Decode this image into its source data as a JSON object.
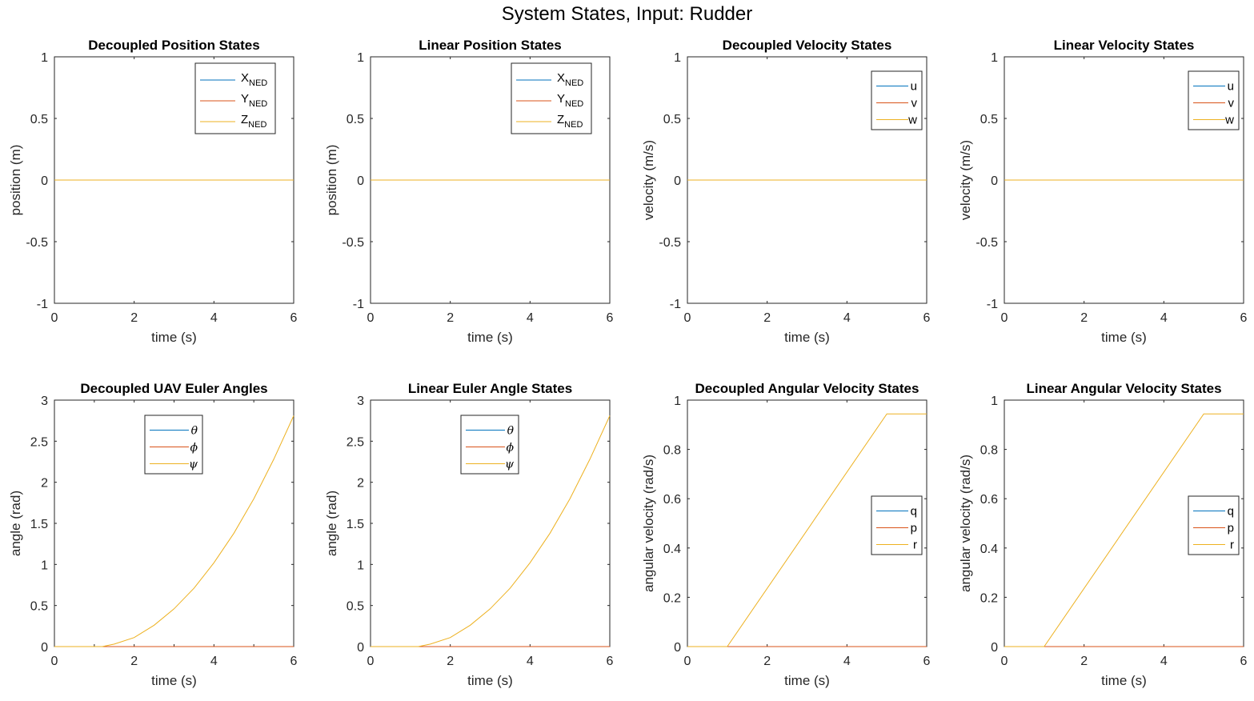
{
  "figure": {
    "title": "System States, Input: Rudder"
  },
  "colors": {
    "series1": "#0072BD",
    "series2": "#D95319",
    "series3": "#EDB120",
    "axis": "#262626"
  },
  "chart_data": [
    {
      "type": "line",
      "title": "Decoupled Position States",
      "xlabel": "time (s)",
      "ylabel": "position (m)",
      "xlim": [
        0,
        6
      ],
      "ylim": [
        -1,
        1
      ],
      "xticks": [
        0,
        2,
        4,
        6
      ],
      "yticks": [
        -1,
        -0.5,
        0,
        0.5,
        1
      ],
      "legend_position": "top-right",
      "series": [
        {
          "name": "X",
          "subscript": "NED",
          "x": [
            0,
            6
          ],
          "y": [
            0,
            0
          ]
        },
        {
          "name": "Y",
          "subscript": "NED",
          "x": [
            0,
            6
          ],
          "y": [
            0,
            0
          ]
        },
        {
          "name": "Z",
          "subscript": "NED",
          "x": [
            0,
            6
          ],
          "y": [
            0,
            0
          ]
        }
      ]
    },
    {
      "type": "line",
      "title": "Linear Position States",
      "xlabel": "time (s)",
      "ylabel": "position (m)",
      "xlim": [
        0,
        6
      ],
      "ylim": [
        -1,
        1
      ],
      "xticks": [
        0,
        2,
        4,
        6
      ],
      "yticks": [
        -1,
        -0.5,
        0,
        0.5,
        1
      ],
      "legend_position": "top-right",
      "series": [
        {
          "name": "X",
          "subscript": "NED",
          "x": [
            0,
            6
          ],
          "y": [
            0,
            0
          ]
        },
        {
          "name": "Y",
          "subscript": "NED",
          "x": [
            0,
            6
          ],
          "y": [
            0,
            0
          ]
        },
        {
          "name": "Z",
          "subscript": "NED",
          "x": [
            0,
            6
          ],
          "y": [
            0,
            0
          ]
        }
      ]
    },
    {
      "type": "line",
      "title": "Decoupled Velocity States",
      "xlabel": "time (s)",
      "ylabel": "velocity (m/s)",
      "xlim": [
        0,
        6
      ],
      "ylim": [
        -1,
        1
      ],
      "xticks": [
        0,
        2,
        4,
        6
      ],
      "yticks": [
        -1,
        -0.5,
        0,
        0.5,
        1
      ],
      "legend_position": "top-right",
      "series": [
        {
          "name": "u",
          "x": [
            0,
            6
          ],
          "y": [
            0,
            0
          ]
        },
        {
          "name": "v",
          "x": [
            0,
            6
          ],
          "y": [
            0,
            0
          ]
        },
        {
          "name": "w",
          "x": [
            0,
            6
          ],
          "y": [
            0,
            0
          ]
        }
      ]
    },
    {
      "type": "line",
      "title": "Linear Velocity States",
      "xlabel": "time (s)",
      "ylabel": "velocity (m/s)",
      "xlim": [
        0,
        6
      ],
      "ylim": [
        -1,
        1
      ],
      "xticks": [
        0,
        2,
        4,
        6
      ],
      "yticks": [
        -1,
        -0.5,
        0,
        0.5,
        1
      ],
      "legend_position": "top-right",
      "series": [
        {
          "name": "u",
          "x": [
            0,
            6
          ],
          "y": [
            0,
            0
          ]
        },
        {
          "name": "v",
          "x": [
            0,
            6
          ],
          "y": [
            0,
            0
          ]
        },
        {
          "name": "w",
          "x": [
            0,
            6
          ],
          "y": [
            0,
            0
          ]
        }
      ]
    },
    {
      "type": "line",
      "title": "Decoupled UAV Euler Angles",
      "xlabel": "time (s)",
      "ylabel": "angle (rad)",
      "xlim": [
        0,
        6
      ],
      "ylim": [
        0,
        3
      ],
      "xticks": [
        0,
        1,
        2,
        3,
        4,
        5,
        6
      ],
      "xticks_labeled": [
        0,
        2,
        4,
        6
      ],
      "yticks": [
        0,
        0.5,
        1,
        1.5,
        2,
        2.5,
        3
      ],
      "legend_position": "top-center",
      "series": [
        {
          "name": "θ",
          "math": true,
          "x": [
            0,
            6
          ],
          "y": [
            0,
            0
          ]
        },
        {
          "name": "ϕ",
          "math": true,
          "x": [
            0,
            6
          ],
          "y": [
            0,
            0
          ]
        },
        {
          "name": "ψ",
          "math": true,
          "x": [
            0,
            1.2,
            1.5,
            2,
            2.5,
            3,
            3.5,
            4,
            4.5,
            5,
            5.5,
            6
          ],
          "y": [
            0,
            0,
            0.03,
            0.11,
            0.26,
            0.46,
            0.71,
            1.02,
            1.38,
            1.8,
            2.28,
            2.81
          ]
        }
      ]
    },
    {
      "type": "line",
      "title": "Linear Euler Angle States",
      "xlabel": "time (s)",
      "ylabel": "angle (rad)",
      "xlim": [
        0,
        6
      ],
      "ylim": [
        0,
        3
      ],
      "xticks": [
        0,
        2,
        4,
        6
      ],
      "yticks": [
        0,
        0.5,
        1,
        1.5,
        2,
        2.5,
        3
      ],
      "legend_position": "top-center",
      "series": [
        {
          "name": "θ",
          "math": true,
          "x": [
            0,
            6
          ],
          "y": [
            0,
            0
          ]
        },
        {
          "name": "ϕ",
          "math": true,
          "x": [
            0,
            6
          ],
          "y": [
            0,
            0
          ]
        },
        {
          "name": "ψ",
          "math": true,
          "x": [
            0,
            1.2,
            1.5,
            2,
            2.5,
            3,
            3.5,
            4,
            4.5,
            5,
            5.5,
            6
          ],
          "y": [
            0,
            0,
            0.03,
            0.11,
            0.26,
            0.46,
            0.71,
            1.02,
            1.38,
            1.8,
            2.28,
            2.81
          ]
        }
      ]
    },
    {
      "type": "line",
      "title": "Decoupled Angular Velocity States",
      "xlabel": "time (s)",
      "ylabel": "angular velocity (rad/s)",
      "xlim": [
        0,
        6
      ],
      "ylim": [
        0,
        1
      ],
      "xticks": [
        0,
        2,
        4,
        6
      ],
      "yticks": [
        0,
        0.2,
        0.4,
        0.6,
        0.8,
        1
      ],
      "legend_position": "right",
      "series": [
        {
          "name": "q",
          "x": [
            0,
            6
          ],
          "y": [
            0,
            0
          ]
        },
        {
          "name": "p",
          "x": [
            0,
            6
          ],
          "y": [
            0,
            0
          ]
        },
        {
          "name": "r",
          "x": [
            0,
            1,
            5,
            6
          ],
          "y": [
            0,
            0,
            0.944,
            0.944
          ]
        }
      ]
    },
    {
      "type": "line",
      "title": "Linear Angular Velocity States",
      "xlabel": "time (s)",
      "ylabel": "angular velocity (rad/s)",
      "xlim": [
        0,
        6
      ],
      "ylim": [
        0,
        1
      ],
      "xticks": [
        0,
        2,
        4,
        6
      ],
      "yticks": [
        0,
        0.2,
        0.4,
        0.6,
        0.8,
        1
      ],
      "legend_position": "right",
      "series": [
        {
          "name": "q",
          "x": [
            0,
            6
          ],
          "y": [
            0,
            0
          ]
        },
        {
          "name": "p",
          "x": [
            0,
            6
          ],
          "y": [
            0,
            0
          ]
        },
        {
          "name": "r",
          "x": [
            0,
            1,
            5,
            6
          ],
          "y": [
            0,
            0,
            0.944,
            0.944
          ]
        }
      ]
    }
  ]
}
